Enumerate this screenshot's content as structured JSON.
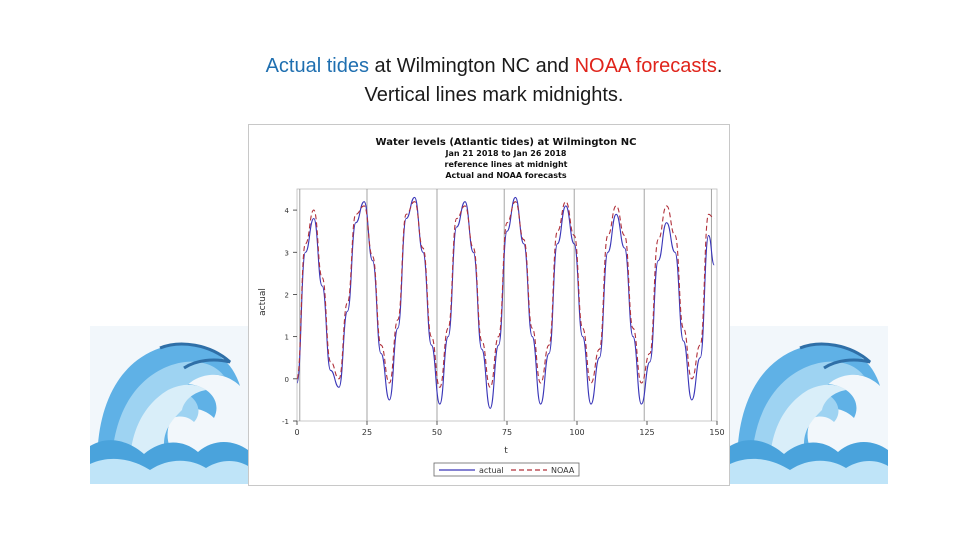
{
  "slide": {
    "title_part1": "Actual tides",
    "title_part2": " at Wilmington NC and ",
    "title_part3": "NOAA forecasts",
    "title_part4": ".",
    "title_line2": "Vertical lines mark midnights."
  },
  "colors": {
    "actual": "#3a36b8",
    "noaa": "#b0303a",
    "title_blue": "#1f6fb0",
    "title_red": "#e0241b",
    "refline": "#9a9a9a"
  },
  "chart_data": {
    "type": "line",
    "title_lines": [
      "Water levels (Atlantic tides) at Wilmington NC",
      "Jan 21 2018 to Jan 26 2018",
      "reference lines at midnight",
      "Actual and NOAA forecasts"
    ],
    "xlabel": "t",
    "ylabel": "actual",
    "xlim": [
      0,
      150
    ],
    "ylim": [
      -1,
      4.5
    ],
    "xticks": [
      0,
      25,
      50,
      75,
      100,
      125,
      150
    ],
    "yticks": [
      -1,
      0,
      1,
      2,
      3,
      4
    ],
    "reference_lines_x": [
      1,
      25,
      50,
      74,
      99,
      124,
      148
    ],
    "legend_position": "bottom",
    "series": [
      {
        "name": "actual",
        "style": "solid",
        "x": [
          0,
          3,
          6,
          9,
          12,
          15,
          18,
          21,
          24,
          27,
          30,
          33,
          36,
          39,
          42,
          45,
          48,
          51,
          54,
          57,
          60,
          63,
          66,
          69,
          72,
          75,
          78,
          81,
          84,
          87,
          90,
          93,
          96,
          99,
          102,
          105,
          108,
          111,
          114,
          117,
          120,
          123,
          126,
          129,
          132,
          135,
          138,
          141,
          144,
          147,
          149
        ],
        "values": [
          -0.1,
          3.0,
          3.8,
          2.2,
          0.2,
          -0.2,
          1.6,
          3.7,
          4.2,
          2.8,
          0.6,
          -0.5,
          1.2,
          3.8,
          4.3,
          3.0,
          0.8,
          -0.6,
          1.0,
          3.6,
          4.2,
          3.0,
          0.7,
          -0.7,
          0.8,
          3.5,
          4.3,
          3.2,
          1.0,
          -0.6,
          0.6,
          3.2,
          4.1,
          3.2,
          1.0,
          -0.6,
          0.5,
          3.0,
          3.9,
          3.1,
          1.0,
          -0.6,
          0.4,
          2.8,
          3.7,
          3.0,
          0.9,
          -0.5,
          0.5,
          3.4,
          2.7
        ]
      },
      {
        "name": "NOAA",
        "style": "dashed",
        "x": [
          0,
          3,
          6,
          9,
          12,
          15,
          18,
          21,
          24,
          27,
          30,
          33,
          36,
          39,
          42,
          45,
          48,
          51,
          54,
          57,
          60,
          63,
          66,
          69,
          72,
          75,
          78,
          81,
          84,
          87,
          90,
          93,
          96,
          99,
          102,
          105,
          108,
          111,
          114,
          117,
          120,
          123,
          126,
          129,
          132,
          135,
          138,
          141,
          144,
          147,
          149
        ],
        "values": [
          0.0,
          3.2,
          4.0,
          2.4,
          0.4,
          0.0,
          1.8,
          3.9,
          4.1,
          2.9,
          0.8,
          -0.1,
          1.4,
          3.9,
          4.2,
          3.1,
          1.0,
          -0.2,
          1.2,
          3.8,
          4.1,
          3.1,
          0.9,
          -0.2,
          1.0,
          3.7,
          4.2,
          3.3,
          1.2,
          -0.1,
          0.8,
          3.5,
          4.2,
          3.4,
          1.2,
          -0.1,
          0.7,
          3.4,
          4.1,
          3.4,
          1.2,
          -0.1,
          0.6,
          3.3,
          4.1,
          3.4,
          1.2,
          0.0,
          0.8,
          3.9,
          3.8
        ]
      }
    ]
  }
}
